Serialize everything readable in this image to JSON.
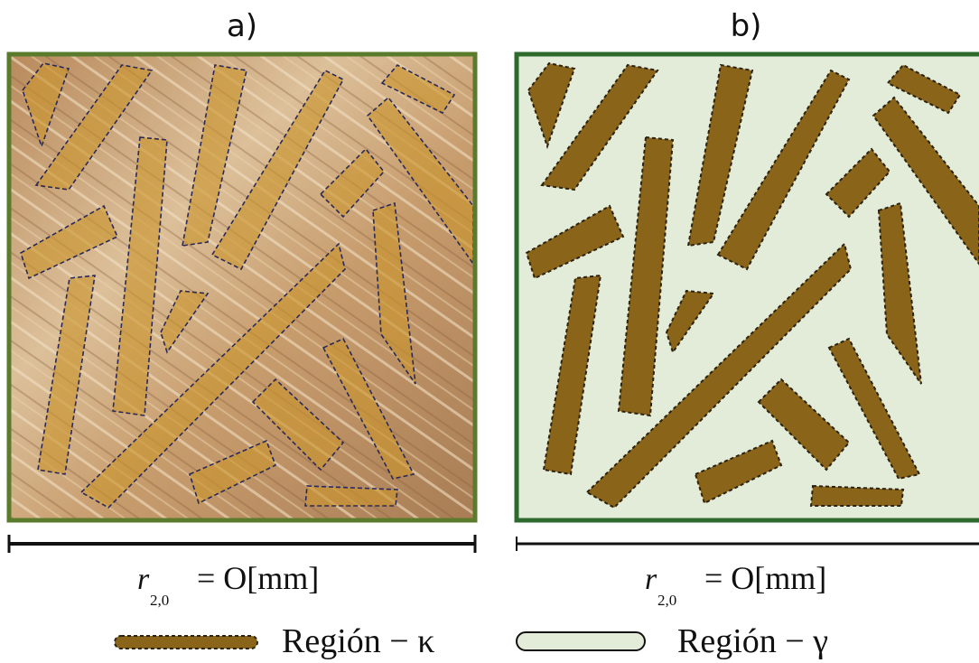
{
  "panels": [
    {
      "label": "a)",
      "scale": {
        "symbol": "r",
        "subscript": "2,0",
        "equation": "= O[mm]"
      }
    },
    {
      "label": "b)",
      "scale": {
        "symbol": "r",
        "subscript": "2,0",
        "equation": "= O[mm]"
      }
    }
  ],
  "legend": [
    {
      "label": "Región − κ"
    },
    {
      "label": "Región − γ"
    }
  ]
}
